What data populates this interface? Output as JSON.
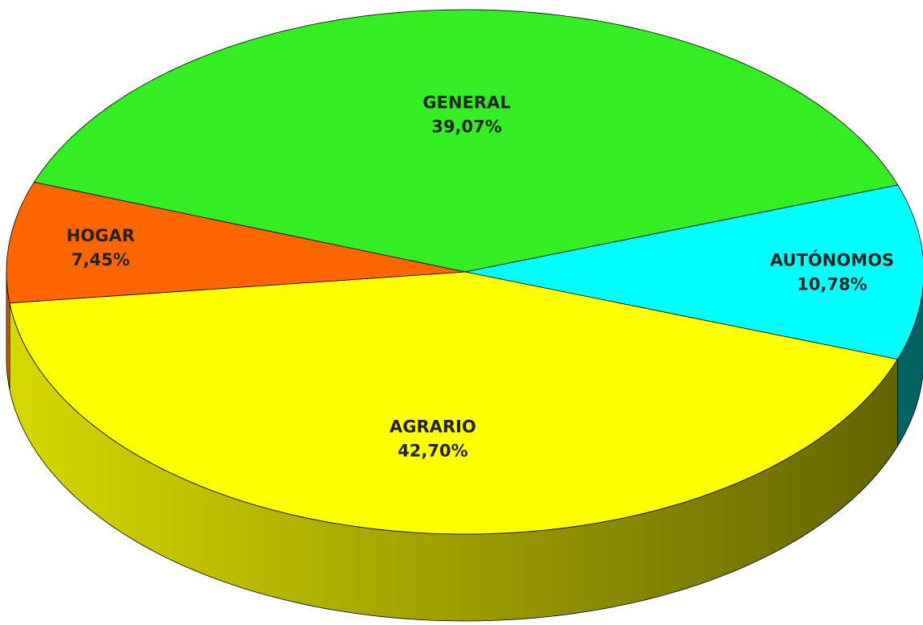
{
  "chart_data": {
    "type": "pie",
    "categories": [
      "GENERAL",
      "AUTÓNOMOS",
      "AGRARIO",
      "HOGAR"
    ],
    "values": [
      39.07,
      10.78,
      42.7,
      7.45
    ],
    "value_labels": [
      "39,07%",
      "10,78%",
      "42,70%",
      "7,45%"
    ],
    "colors": [
      "#33ee22",
      "#00ffff",
      "#ffff00",
      "#ff6600"
    ]
  }
}
